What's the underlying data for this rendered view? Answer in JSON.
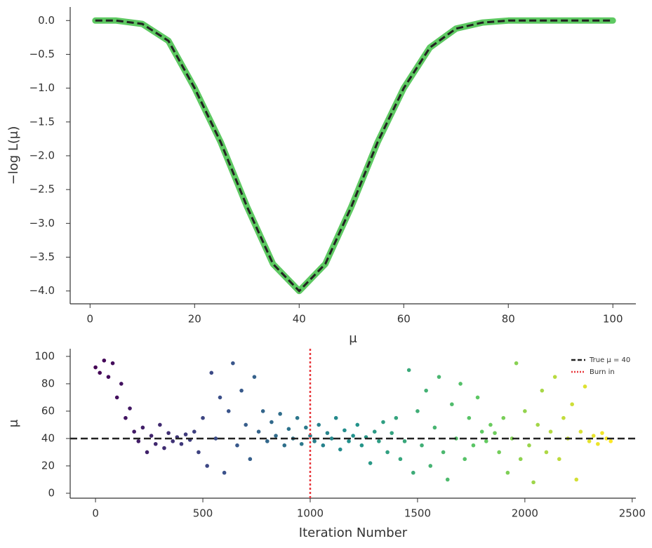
{
  "chart_data": [
    {
      "type": "line",
      "x_label": "μ",
      "y_label": "−log L(μ)",
      "x": [
        1,
        5,
        10,
        15,
        20,
        25,
        30,
        35,
        40,
        45,
        50,
        55,
        60,
        65,
        70,
        75,
        80,
        85,
        90,
        95,
        100
      ],
      "values": [
        0,
        0,
        -0.05,
        -0.3,
        -1.0,
        -1.8,
        -2.75,
        -3.6,
        -4.0,
        -3.6,
        -2.75,
        -1.8,
        -1.0,
        -0.4,
        -0.12,
        -0.03,
        0,
        0,
        0,
        0,
        0
      ],
      "color": "#5ec962",
      "xlim": [
        -3.8,
        104.4
      ],
      "ylim": [
        -4.19,
        0.2
      ],
      "xticks": [
        0,
        20,
        40,
        60,
        80,
        100
      ],
      "yticks": [
        {
          "value": 0,
          "label": "0.0"
        },
        {
          "value": -0.5,
          "label": "−0.5"
        },
        {
          "value": -1,
          "label": "−1.0"
        },
        {
          "value": -1.5,
          "label": "−1.5"
        },
        {
          "value": -2,
          "label": "−2.0"
        },
        {
          "value": -2.5,
          "label": "−2.5"
        },
        {
          "value": -3,
          "label": "−3.0"
        },
        {
          "value": -3.5,
          "label": "−3.5"
        },
        {
          "value": -4,
          "label": "−4.0"
        }
      ]
    },
    {
      "type": "scatter",
      "x_label": "Iteration Number",
      "y_label": "μ",
      "colormap": "viridis",
      "legend": "upper right",
      "x": [
        0,
        20,
        40,
        60,
        80,
        100,
        120,
        140,
        160,
        180,
        200,
        220,
        240,
        260,
        280,
        300,
        320,
        340,
        360,
        380,
        400,
        420,
        440,
        460,
        480,
        500,
        520,
        540,
        560,
        580,
        600,
        620,
        640,
        660,
        680,
        700,
        720,
        740,
        760,
        780,
        800,
        820,
        840,
        860,
        880,
        900,
        920,
        940,
        960,
        980,
        1000,
        1020,
        1040,
        1060,
        1080,
        1100,
        1120,
        1140,
        1160,
        1180,
        1200,
        1220,
        1240,
        1260,
        1280,
        1300,
        1320,
        1340,
        1360,
        1380,
        1400,
        1420,
        1440,
        1460,
        1480,
        1500,
        1520,
        1540,
        1560,
        1580,
        1600,
        1620,
        1640,
        1660,
        1680,
        1700,
        1720,
        1740,
        1760,
        1780,
        1800,
        1820,
        1840,
        1860,
        1880,
        1900,
        1920,
        1940,
        1960,
        1980,
        2000,
        2020,
        2040,
        2060,
        2080,
        2100,
        2120,
        2140,
        2160,
        2180,
        2200,
        2220,
        2240,
        2260,
        2280,
        2300,
        2320,
        2340,
        2360,
        2380,
        2400
      ],
      "values": [
        92,
        88,
        97,
        85,
        95,
        70,
        80,
        55,
        62,
        45,
        38,
        48,
        30,
        42,
        36,
        50,
        33,
        44,
        38,
        41,
        36,
        43,
        39,
        45,
        30,
        55,
        20,
        88,
        40,
        70,
        15,
        60,
        95,
        35,
        75,
        50,
        25,
        85,
        45,
        60,
        38,
        52,
        42,
        58,
        35,
        47,
        40,
        55,
        36,
        48,
        42,
        38,
        50,
        35,
        44,
        40,
        55,
        32,
        46,
        38,
        42,
        50,
        35,
        41,
        22,
        45,
        38,
        52,
        30,
        44,
        55,
        25,
        38,
        90,
        15,
        60,
        35,
        75,
        20,
        48,
        85,
        30,
        10,
        65,
        40,
        80,
        25,
        55,
        35,
        70,
        45,
        38,
        50,
        44,
        30,
        55,
        15,
        40,
        95,
        25,
        60,
        35,
        8,
        50,
        75,
        30,
        45,
        85,
        25,
        55,
        40,
        65,
        10,
        45,
        78,
        38,
        42,
        36,
        44,
        40,
        38
      ],
      "hlines": [
        {
          "value": 40,
          "label": "True μ = 40",
          "color": "#222222"
        }
      ],
      "vlines": [
        {
          "value": 1000,
          "label": "Burn in",
          "color": "#e8383d"
        }
      ],
      "xlim": [
        -118,
        2517
      ],
      "ylim": [
        -3.6,
        105.6
      ],
      "xticks": [
        0,
        500,
        1000,
        1500,
        2000,
        2500
      ],
      "yticks": [
        0,
        20,
        40,
        60,
        80,
        100
      ]
    }
  ]
}
